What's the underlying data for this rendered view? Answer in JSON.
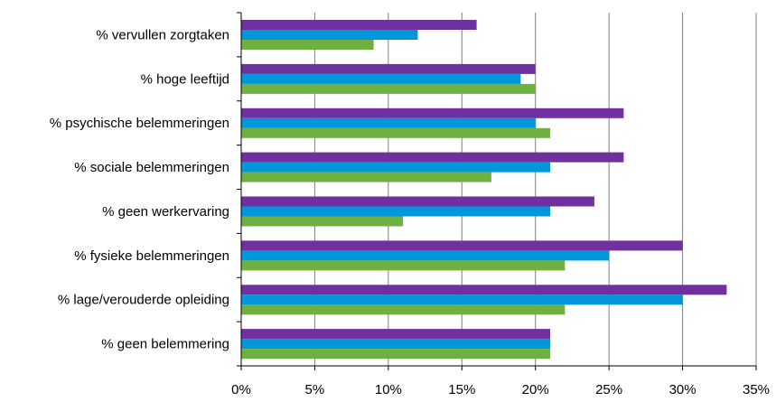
{
  "chart_data": {
    "type": "bar",
    "orientation": "horizontal",
    "categories": [
      "% vervullen zorgtaken",
      "% hoge leeftijd",
      "% psychische belemmeringen",
      "% sociale belemmeringen",
      "% geen werkervaring",
      "% fysieke belemmeringen",
      "% lage/verouderde opleiding",
      "% geen belemmering"
    ],
    "series": [
      {
        "color": "#7030A0",
        "values": [
          16,
          20,
          26,
          26,
          24,
          30,
          33,
          21
        ]
      },
      {
        "color": "#0096DC",
        "values": [
          12,
          19,
          20,
          21,
          21,
          25,
          30,
          21
        ]
      },
      {
        "color": "#70B040",
        "values": [
          9,
          20,
          21,
          17,
          11,
          22,
          22,
          21
        ]
      }
    ],
    "x_ticks": [
      "0%",
      "5%",
      "10%",
      "15%",
      "20%",
      "25%",
      "30%",
      "35%"
    ],
    "xlim": [
      0,
      35
    ],
    "x_unit": "%",
    "grid": "vertical",
    "legend": "none",
    "title": "",
    "xlabel": "",
    "ylabel": ""
  }
}
